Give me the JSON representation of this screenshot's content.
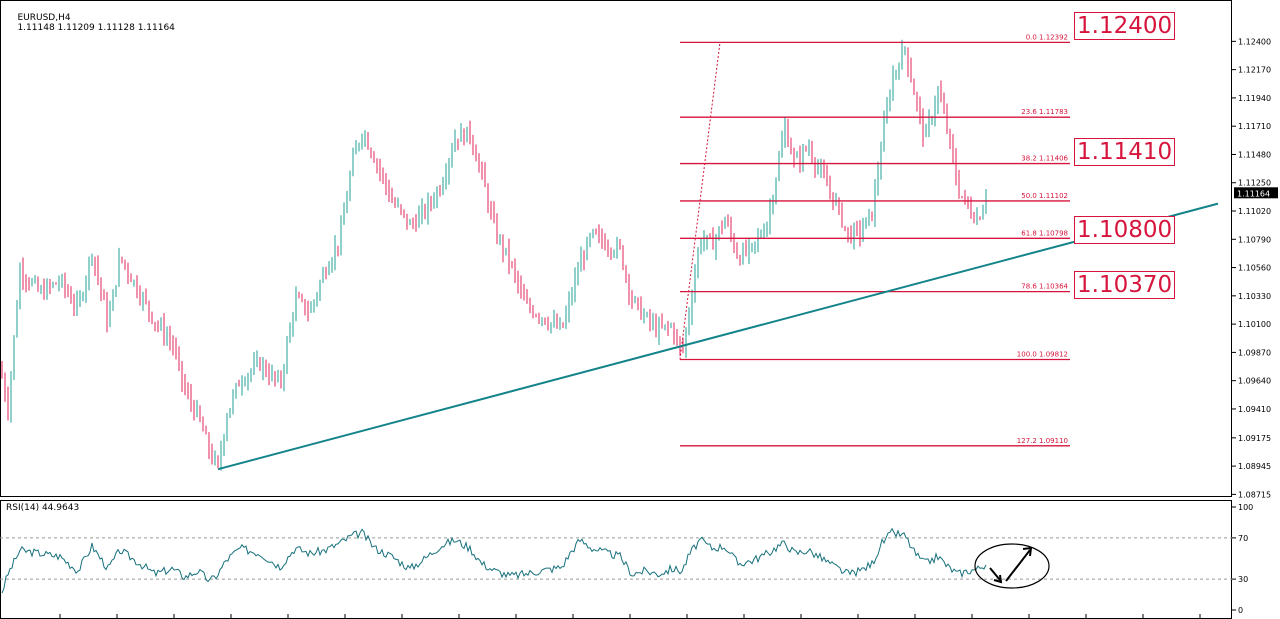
{
  "header": {
    "symbol_tf": "EURUSD,H4",
    "ohlc": "1.11148 1.11209 1.11128 1.11164"
  },
  "rsi_header": "RSI(14) 44.9643",
  "colors": {
    "bull": "#20a098",
    "bear": "#e0245a",
    "trend": "#12848a",
    "fib": "#d6143c",
    "rsi": "#16707c",
    "grid": "#000000"
  },
  "callouts": [
    "1.12400",
    "1.11410",
    "1.10800",
    "1.10370"
  ],
  "chart_data": [
    {
      "type": "candlestick",
      "title": "EURUSD,H4",
      "ylim": [
        1.0871,
        1.1259
      ],
      "y_ticks": [
        "1.12400",
        "1.12170",
        "1.11940",
        "1.11710",
        "1.11480",
        "1.11250",
        "1.11020",
        "1.10790",
        "1.10560",
        "1.10330",
        "1.10100",
        "1.09870",
        "1.09640",
        "1.09410",
        "1.09175",
        "1.08945",
        "1.08715"
      ],
      "current_price": "1.11164",
      "price_path": [
        [
          0,
          1.0975
        ],
        [
          8,
          1.0942
        ],
        [
          20,
          1.1055
        ],
        [
          40,
          1.1035
        ],
        [
          60,
          1.1045
        ],
        [
          78,
          1.1022
        ],
        [
          92,
          1.107
        ],
        [
          108,
          1.101
        ],
        [
          120,
          1.1065
        ],
        [
          140,
          1.1035
        ],
        [
          155,
          1.1012
        ],
        [
          172,
          1.0995
        ],
        [
          185,
          1.0955
        ],
        [
          198,
          1.0935
        ],
        [
          210,
          1.0905
        ],
        [
          218,
          1.0892
        ],
        [
          226,
          1.0935
        ],
        [
          240,
          1.0965
        ],
        [
          260,
          1.0978
        ],
        [
          280,
          1.096
        ],
        [
          295,
          1.103
        ],
        [
          310,
          1.102
        ],
        [
          325,
          1.1055
        ],
        [
          340,
          1.108
        ],
        [
          352,
          1.114
        ],
        [
          362,
          1.1168
        ],
        [
          375,
          1.1145
        ],
        [
          392,
          1.111
        ],
        [
          410,
          1.109
        ],
        [
          425,
          1.1102
        ],
        [
          440,
          1.1122
        ],
        [
          455,
          1.1162
        ],
        [
          470,
          1.1165
        ],
        [
          482,
          1.113
        ],
        [
          495,
          1.1085
        ],
        [
          510,
          1.106
        ],
        [
          525,
          1.1025
        ],
        [
          540,
          1.1018
        ],
        [
          552,
          1.101
        ],
        [
          562,
          1.1005
        ],
        [
          570,
          1.103
        ],
        [
          580,
          1.106
        ],
        [
          592,
          1.1082
        ],
        [
          608,
          1.1075
        ],
        [
          620,
          1.107
        ],
        [
          632,
          1.103
        ],
        [
          645,
          1.1015
        ],
        [
          658,
          1.1005
        ],
        [
          672,
          1.1008
        ],
        [
          682,
          1.0985
        ],
        [
          690,
          1.1025
        ],
        [
          700,
          1.108
        ],
        [
          712,
          1.1075
        ],
        [
          725,
          1.1095
        ],
        [
          738,
          1.1065
        ],
        [
          752,
          1.107
        ],
        [
          768,
          1.1095
        ],
        [
          778,
          1.114
        ],
        [
          785,
          1.117
        ],
        [
          795,
          1.114
        ],
        [
          808,
          1.1155
        ],
        [
          822,
          1.113
        ],
        [
          835,
          1.111
        ],
        [
          848,
          1.1082
        ],
        [
          860,
          1.1085
        ],
        [
          872,
          1.11
        ],
        [
          882,
          1.116
        ],
        [
          892,
          1.121
        ],
        [
          905,
          1.1235
        ],
        [
          915,
          1.1195
        ],
        [
          925,
          1.116
        ],
        [
          938,
          1.12
        ],
        [
          948,
          1.1165
        ],
        [
          958,
          1.112
        ],
        [
          968,
          1.1105
        ],
        [
          978,
          1.1095
        ],
        [
          986,
          1.1116
        ]
      ],
      "trendline": {
        "from": [
          218,
          1.0892
        ],
        "to": [
          1218,
          1.1108
        ]
      },
      "fib_levels": [
        {
          "label": "0.0  1.12392",
          "value": 1.12392
        },
        {
          "label": "23.6  1.11783",
          "value": 1.11783
        },
        {
          "label": "38.2  1.11406",
          "value": 1.11406
        },
        {
          "label": "50.0  1.11102",
          "value": 1.11102
        },
        {
          "label": "61.8  1.10798",
          "value": 1.10798
        },
        {
          "label": "78.6  1.10364",
          "value": 1.10364
        },
        {
          "label": "100.0  1.09812",
          "value": 1.09812
        },
        {
          "label": "127.2  1.09110",
          "value": 1.0911
        }
      ]
    },
    {
      "type": "line",
      "title": "RSI(14) 44.9643",
      "ylim": [
        0,
        100
      ],
      "y_ticks": [
        "100",
        "70",
        "30",
        "0"
      ],
      "levels": [
        70,
        30
      ],
      "value_path": [
        [
          0,
          12
        ],
        [
          8,
          35
        ],
        [
          20,
          58
        ],
        [
          40,
          55
        ],
        [
          60,
          52
        ],
        [
          78,
          38
        ],
        [
          92,
          62
        ],
        [
          108,
          40
        ],
        [
          120,
          58
        ],
        [
          140,
          45
        ],
        [
          155,
          35
        ],
        [
          172,
          40
        ],
        [
          185,
          32
        ],
        [
          198,
          38
        ],
        [
          210,
          28
        ],
        [
          218,
          35
        ],
        [
          226,
          48
        ],
        [
          240,
          60
        ],
        [
          260,
          55
        ],
        [
          280,
          42
        ],
        [
          295,
          60
        ],
        [
          310,
          55
        ],
        [
          325,
          58
        ],
        [
          340,
          65
        ],
        [
          352,
          72
        ],
        [
          362,
          75
        ],
        [
          375,
          60
        ],
        [
          392,
          52
        ],
        [
          410,
          40
        ],
        [
          425,
          50
        ],
        [
          440,
          62
        ],
        [
          455,
          68
        ],
        [
          470,
          60
        ],
        [
          482,
          45
        ],
        [
          495,
          38
        ],
        [
          510,
          33
        ],
        [
          525,
          35
        ],
        [
          540,
          38
        ],
        [
          552,
          40
        ],
        [
          562,
          42
        ],
        [
          570,
          55
        ],
        [
          580,
          68
        ],
        [
          592,
          60
        ],
        [
          608,
          55
        ],
        [
          620,
          52
        ],
        [
          632,
          35
        ],
        [
          645,
          38
        ],
        [
          658,
          35
        ],
        [
          672,
          40
        ],
        [
          682,
          38
        ],
        [
          690,
          55
        ],
        [
          700,
          68
        ],
        [
          712,
          60
        ],
        [
          725,
          62
        ],
        [
          738,
          45
        ],
        [
          752,
          48
        ],
        [
          768,
          55
        ],
        [
          778,
          62
        ],
        [
          785,
          65
        ],
        [
          795,
          55
        ],
        [
          808,
          58
        ],
        [
          822,
          50
        ],
        [
          835,
          42
        ],
        [
          848,
          35
        ],
        [
          860,
          38
        ],
        [
          872,
          45
        ],
        [
          882,
          65
        ],
        [
          892,
          75
        ],
        [
          905,
          72
        ],
        [
          915,
          55
        ],
        [
          925,
          45
        ],
        [
          938,
          52
        ],
        [
          948,
          42
        ],
        [
          958,
          35
        ],
        [
          968,
          38
        ],
        [
          978,
          40
        ],
        [
          986,
          45
        ]
      ]
    }
  ]
}
